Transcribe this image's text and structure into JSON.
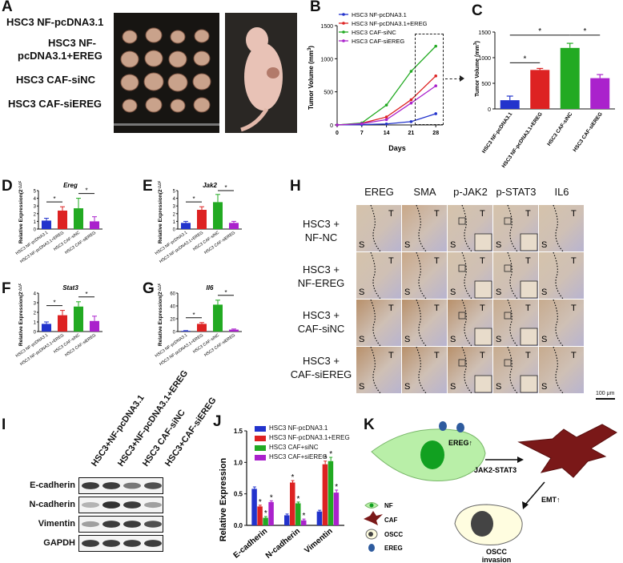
{
  "panels": {
    "A": {
      "label": "A",
      "groups": [
        "HSC3 NF-pcDNA3.1",
        "HSC3 NF-",
        "pcDNA3.1+EREG",
        "HSC3 CAF-siNC",
        "HSC3 CAF-siEREG"
      ]
    },
    "B": {
      "label": "B",
      "chart_data": {
        "type": "line",
        "ylabel": "Tumor Volume (mm",
        "ylabel_sup": "3",
        "ylabel_end": ")",
        "xlabel": "Days",
        "x": [
          0,
          7,
          14,
          21,
          28
        ],
        "yticks": [
          0,
          500,
          1000,
          1500
        ],
        "ylim": [
          0,
          1500
        ],
        "series": [
          {
            "name": "HSC3 NF-pcDNA3.1",
            "color": "#2233cc",
            "values": [
              0,
              5,
              15,
              50,
              170
            ]
          },
          {
            "name": "HSC3 NF-pcDNA3.1+EREG",
            "color": "#dd2222",
            "values": [
              0,
              25,
              120,
              380,
              740
            ]
          },
          {
            "name": "HSC3 CAF-siNC",
            "color": "#22aa22",
            "values": [
              0,
              30,
              300,
              810,
              1190
            ]
          },
          {
            "name": "HSC3 CAF-siEREG",
            "color": "#aa22cc",
            "values": [
              0,
              20,
              80,
              330,
              590
            ]
          }
        ]
      }
    },
    "C": {
      "label": "C",
      "chart_data": {
        "type": "bar",
        "ylabel": "Tumor Volume (mm",
        "ylabel_sup": "3",
        "ylabel_end": ")",
        "categories": [
          "HSC3 NF-pcDNA3.1",
          "HSC3 NF-pcDNA3.1+EREG",
          "HSC3 CAF-siNC",
          "HSC3 CAF-siEREG"
        ],
        "values": [
          170,
          760,
          1190,
          600
        ],
        "errors": [
          80,
          30,
          90,
          70
        ],
        "colors": [
          "#2233cc",
          "#dd2222",
          "#22aa22",
          "#aa22cc"
        ],
        "yticks": [
          0,
          500,
          1000,
          1500
        ],
        "ylim": [
          0,
          1500
        ],
        "stars": [
          "*",
          "*",
          "*"
        ]
      }
    },
    "D": {
      "label": "D",
      "chart_data": {
        "type": "bar",
        "title": "Ereg",
        "ylabel": "Relative Expression(2",
        "ylabel_sup": "-△△CT",
        "ylabel_end": ")",
        "categories": [
          "HSC3 NF-pcDNA3.1",
          "HSC3 NF-pcDNA3.1+EREG",
          "HSC3 CAF-siNC",
          "HSC3 CAF-siEREG"
        ],
        "values": [
          1.1,
          2.4,
          2.7,
          1.0
        ],
        "errors": [
          0.3,
          0.5,
          1.3,
          0.6
        ],
        "yticks": [
          0,
          1,
          2,
          3,
          4,
          5
        ],
        "ylim": [
          0,
          5
        ],
        "stars": [
          "*",
          "*"
        ]
      }
    },
    "E": {
      "label": "E",
      "chart_data": {
        "type": "bar",
        "title": "Jak2",
        "ylabel": "Relative Expression(2",
        "ylabel_sup": "-△△CT",
        "ylabel_end": ")",
        "categories": [
          "HSC3 NF-pcDNA3.1",
          "HSC3 NF-pcDNA3.1+EREG",
          "HSC3 CAF-siNC",
          "HSC3 CAF-siEREG"
        ],
        "values": [
          0.8,
          2.5,
          3.5,
          0.8
        ],
        "errors": [
          0.2,
          0.4,
          1.0,
          0.2
        ],
        "yticks": [
          0,
          1,
          2,
          3,
          4,
          5
        ],
        "ylim": [
          0,
          5
        ],
        "stars": [
          "*",
          "*"
        ]
      }
    },
    "F": {
      "label": "F",
      "chart_data": {
        "type": "bar",
        "title": "Stat3",
        "ylabel": "Relative Expression(2",
        "ylabel_sup": "-△△CT",
        "ylabel_end": ")",
        "categories": [
          "HSC3 NF-pcDNA3.1",
          "HSC3 NF-pcDNA3.1+EREG",
          "HSC3 CAF-siNC",
          "HSC3 CAF-siEREG"
        ],
        "values": [
          0.8,
          1.7,
          2.6,
          1.1
        ],
        "errors": [
          0.2,
          0.5,
          0.5,
          0.5
        ],
        "yticks": [
          0,
          1,
          2,
          3,
          4
        ],
        "ylim": [
          0,
          4
        ],
        "stars": [
          "*",
          "*"
        ]
      }
    },
    "G": {
      "label": "G",
      "chart_data": {
        "type": "bar",
        "title": "Il6",
        "ylabel": "Relative Expression(2",
        "ylabel_sup": "-△△CT",
        "ylabel_end": ")",
        "categories": [
          "HSC3 NF-pcDNA3.1",
          "HSC3 NF-pcDNA3.1+EREG",
          "HSC3 CAF-siNC",
          "HSC3 CAF-siEREG"
        ],
        "values": [
          1,
          12,
          42,
          3
        ],
        "errors": [
          0.5,
          2,
          7,
          1
        ],
        "yticks": [
          0,
          20,
          40,
          60
        ],
        "ylim": [
          0,
          60
        ],
        "stars": [
          "*",
          "*"
        ]
      }
    },
    "H": {
      "label": "H",
      "columns": [
        "EREG",
        "SMA",
        "p-JAK2",
        "p-STAT3",
        "IL6"
      ],
      "rows": [
        {
          "line1": "HSC3 +",
          "line2": "NF-NC"
        },
        {
          "line1": "HSC3 +",
          "line2": "NF-EREG"
        },
        {
          "line1": "HSC3 +",
          "line2": "CAF-siNC"
        },
        {
          "line1": "HSC3 +",
          "line2": "CAF-siEREG"
        }
      ],
      "region_T": "T",
      "region_S": "S",
      "scale_bar": "100 μm"
    },
    "I": {
      "label": "I",
      "lanes": [
        "HSC3+NF-pcDNA3.1",
        "HSC3+NF-pcDNA3.1+EREG",
        "HSC3 CAF-siNC",
        "HSC3+CAF-siEREG"
      ],
      "blots": [
        "E-cadherin",
        "N-cadherin",
        "Vimentin",
        "GAPDH"
      ]
    },
    "J": {
      "label": "J",
      "chart_data": {
        "type": "bar",
        "ylabel": "Relative Expression",
        "categories": [
          "E-cadherin",
          "N-cadherin",
          "Vimentin"
        ],
        "yticks": [
          "0.0",
          "0.5",
          "1.0",
          "1.5"
        ],
        "ylim": [
          0,
          1.5
        ],
        "series": [
          {
            "name": "HSC3 NF-pcDNA3.1",
            "color": "#2233cc",
            "values": [
              0.58,
              0.16,
              0.22
            ],
            "errors": [
              0.03,
              0.02,
              0.02
            ]
          },
          {
            "name": "HSC3 NF-pcDNA3.1+EREG",
            "color": "#dd2222",
            "values": [
              0.3,
              0.68,
              0.97
            ],
            "errors": [
              0.02,
              0.03,
              0.05
            ]
          },
          {
            "name": "HSC3 CAF+siNC",
            "color": "#22aa22",
            "values": [
              0.12,
              0.35,
              1.02
            ],
            "errors": [
              0.02,
              0.02,
              0.06
            ]
          },
          {
            "name": "HSC3 CAF+siEREG",
            "color": "#aa22cc",
            "values": [
              0.37,
              0.08,
              0.52
            ],
            "errors": [
              0.02,
              0.02,
              0.04
            ]
          }
        ],
        "star": "*"
      }
    },
    "K": {
      "label": "K",
      "ereg_label": "EREG↑",
      "pathway": "JAK2-STAT3",
      "emt": "EMT↑",
      "invasion_line1": "OSCC",
      "invasion_line2": "invasion",
      "legend": [
        "NF",
        "CAF",
        "OSCC",
        "EREG"
      ]
    }
  }
}
